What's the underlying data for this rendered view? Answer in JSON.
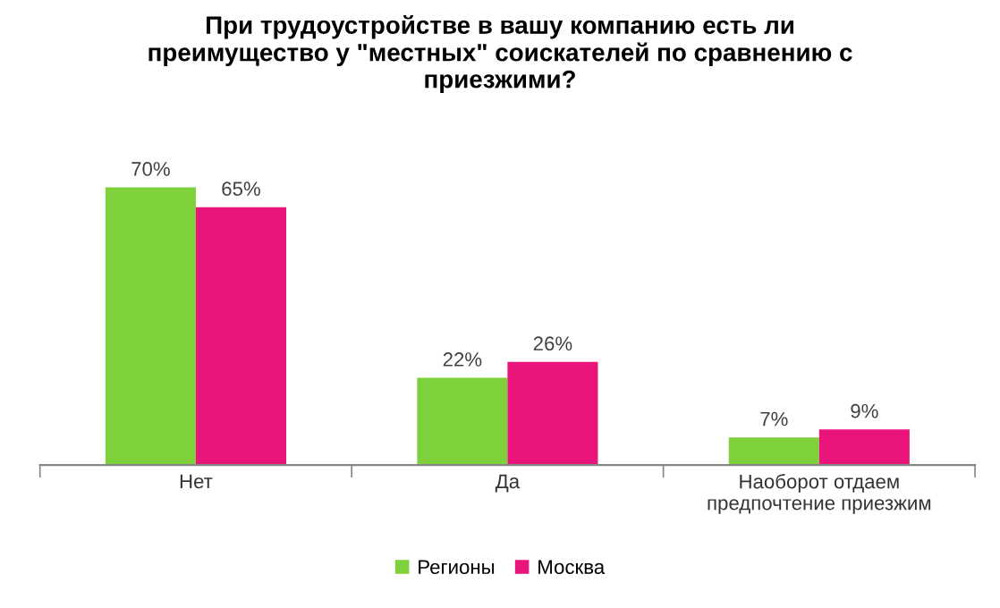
{
  "chart_data": {
    "type": "bar",
    "title": "При трудоустройстве в вашу компанию есть ли\nпреимущество у \"местных\" соискателей по сравнению с\nприезжими?",
    "categories": [
      "Нет",
      "Да",
      "Наоборот отдаем\nпредпочтение приезжим"
    ],
    "series": [
      {
        "name": "Регионы",
        "color": "#7fd13b",
        "values": [
          70,
          22,
          7
        ],
        "value_labels": [
          "70%",
          "22%",
          "7%"
        ]
      },
      {
        "name": "Москва",
        "color": "#ea157a",
        "values": [
          65,
          26,
          9
        ],
        "value_labels": [
          "65%",
          "26%",
          "9%"
        ]
      }
    ],
    "legend": "bottom",
    "grid": false,
    "tick_labels": "x"
  }
}
